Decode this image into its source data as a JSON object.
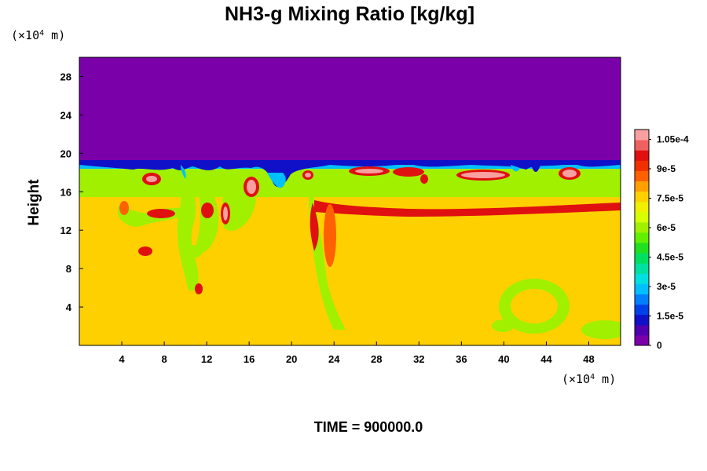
{
  "chart_data": {
    "type": "heatmap",
    "title": "NH3-g Mixing Ratio [kg/kg]",
    "ylabel": "Height",
    "x_unit": "(×10",
    "x_unit_exp": "4",
    "x_unit_tail": " m)",
    "y_unit": "(×10",
    "y_unit_exp": "4",
    "y_unit_tail": " m)",
    "xlim": [
      0,
      51
    ],
    "ylim": [
      0,
      30
    ],
    "x_ticks": [
      4,
      8,
      12,
      16,
      20,
      24,
      28,
      32,
      36,
      40,
      44,
      48
    ],
    "y_ticks": [
      4,
      8,
      12,
      16,
      20,
      24,
      28
    ],
    "colorbar": {
      "ticks": [
        {
          "label": "0",
          "value": 0
        },
        {
          "label": "1.5e-5",
          "value": 1.5e-05
        },
        {
          "label": "3e-5",
          "value": 3e-05
        },
        {
          "label": "4.5e-5",
          "value": 4.5e-05
        },
        {
          "label": "6e-5",
          "value": 6e-05
        },
        {
          "label": "7.5e-5",
          "value": 7.5e-05
        },
        {
          "label": "9e-5",
          "value": 9e-05
        },
        {
          "label": "1.05e-4",
          "value": 0.000105
        }
      ],
      "range": [
        0,
        0.00011
      ],
      "colors": [
        "#7a00aa",
        "#5000b0",
        "#1010c8",
        "#0040e8",
        "#0080ff",
        "#00c0ff",
        "#00e0e0",
        "#00e0a0",
        "#00e060",
        "#20e020",
        "#60f000",
        "#a0f000",
        "#d8ff00",
        "#f0f000",
        "#ffd000",
        "#ffa000",
        "#ff6000",
        "#f03000",
        "#e01010",
        "#f06060",
        "#f8a0a0"
      ]
    },
    "regions": {
      "upper_value": 0,
      "background_value": 7.5e-05,
      "band_value": 6e-05,
      "max_value": 0.00011
    }
  },
  "footer": {
    "time_label": "TIME = 900000.0"
  }
}
